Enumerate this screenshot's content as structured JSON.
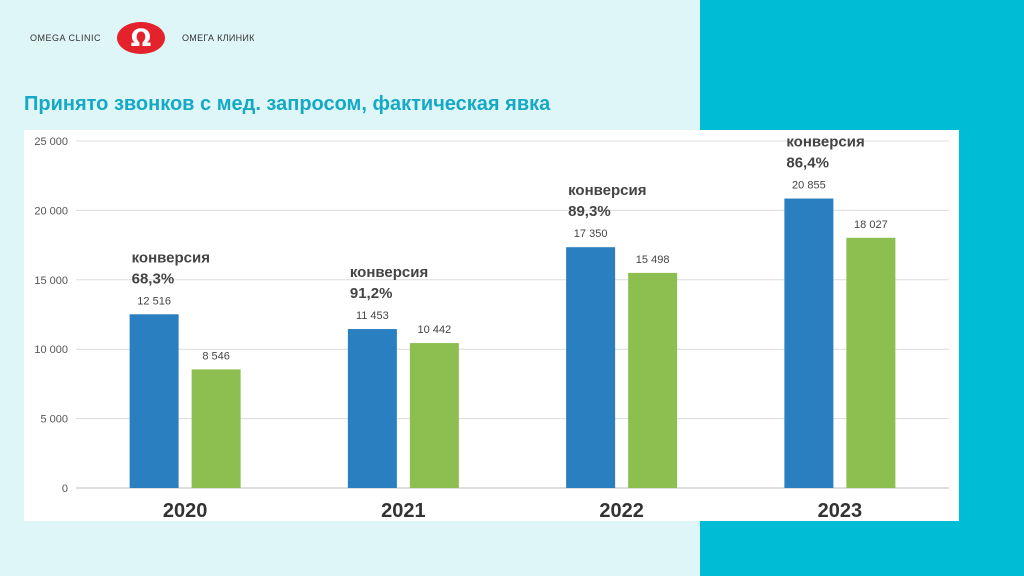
{
  "header": {
    "brand_en": "OMEGA CLINIC",
    "brand_ru": "ОМЕГА КЛИНИК",
    "logo_glyph": "Ω",
    "logo_color": "#e3222b"
  },
  "title": "Принято звонков с мед. запросом, фактическая явка",
  "colors": {
    "accent_band": "#00bcd4",
    "series_1": "#2a7fc1",
    "series_2": "#8dbe50"
  },
  "chart_data": {
    "type": "bar",
    "categories": [
      "2020",
      "2021",
      "2022",
      "2023"
    ],
    "series": [
      {
        "values": [
          12516,
          11453,
          17350,
          20855
        ],
        "labels": [
          "12 516",
          "11 453",
          "17 350",
          "20 855"
        ]
      },
      {
        "values": [
          8546,
          10442,
          15498,
          18027
        ],
        "labels": [
          "8 546",
          "10 442",
          "15 498",
          "18 027"
        ]
      }
    ],
    "ylim": [
      0,
      25000
    ],
    "yticks": [
      0,
      5000,
      10000,
      15000,
      20000,
      25000
    ],
    "ytick_labels": [
      "0",
      "5 000",
      "10 000",
      "15 000",
      "20 000",
      "25 000"
    ],
    "grid": true,
    "annotations": [
      {
        "category": "2020",
        "line1": "конверсия",
        "line2": "68,3%"
      },
      {
        "category": "2021",
        "line1": "конверсия",
        "line2": "91,2%"
      },
      {
        "category": "2022",
        "line1": "конверсия",
        "line2": "89,3%"
      },
      {
        "category": "2023",
        "line1": "конверсия",
        "line2": "86,4%"
      }
    ]
  }
}
